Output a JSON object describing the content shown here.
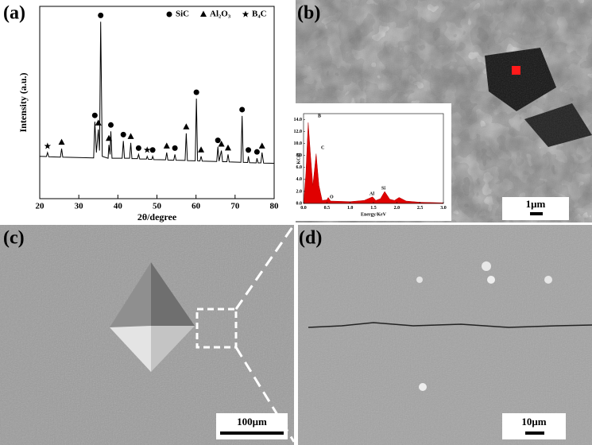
{
  "panels": {
    "a": "(a)",
    "b": "(b)",
    "c": "(c)",
    "d": "(d)"
  },
  "scale_bars": {
    "b": "1μm",
    "c": "100μm",
    "d": "10μm"
  },
  "chart_data": [
    {
      "type": "line",
      "xlabel": "2θ/degree",
      "ylabel": "Intensity (a.u.)",
      "color": "#000000",
      "xlim": [
        20,
        80
      ],
      "xticks": [
        20,
        30,
        40,
        50,
        60,
        70,
        80
      ],
      "ylim": [
        0,
        100
      ],
      "x": [
        20,
        21.7,
        22.0,
        22.3,
        25.3,
        25.6,
        25.9,
        33.8,
        34.1,
        34.5,
        35.0,
        35.3,
        35.6,
        36.0,
        37.5,
        37.7,
        38.0,
        38.2,
        38.5,
        41.1,
        41.4,
        41.7,
        43.0,
        43.3,
        43.6,
        45.0,
        45.3,
        45.6,
        47.3,
        47.5,
        47.8,
        48.7,
        48.9,
        49.2,
        52.2,
        52.5,
        52.8,
        54.3,
        54.6,
        54.9,
        57.2,
        57.5,
        57.8,
        59.8,
        60.1,
        60.4,
        61.0,
        61.3,
        61.6,
        65.3,
        65.6,
        65.9,
        66.5,
        66.8,
        67.9,
        68.2,
        68.5,
        71.5,
        71.8,
        72.1,
        73.2,
        73.4,
        73.7,
        75.4,
        75.6,
        75.9,
        76.6,
        76.9,
        77.3,
        80
      ],
      "values": [
        22,
        21.9,
        24,
        21.8,
        21.6,
        26,
        21.6,
        21.2,
        40,
        24,
        36,
        25,
        92,
        22,
        21,
        28,
        23,
        35,
        21,
        21,
        30,
        21,
        21,
        29,
        20.8,
        20.8,
        23,
        20.6,
        20.6,
        22,
        20.5,
        20.4,
        22,
        20.3,
        20.2,
        24,
        20.1,
        20,
        23,
        20,
        19.9,
        34,
        19.8,
        19.7,
        52,
        19.7,
        19.6,
        22,
        19.5,
        19.3,
        27,
        19.5,
        25,
        19.2,
        19.2,
        23,
        19.1,
        18.9,
        43,
        18.9,
        18.8,
        22,
        18.7,
        18.6,
        21,
        18.6,
        18.6,
        24,
        18.5,
        18.4
      ],
      "phases": [
        {
          "name": "SiC",
          "symbol": "circle",
          "x": [
            34.1,
            35.6,
            38.2,
            41.4,
            45.3,
            48.9,
            54.6,
            60.1,
            65.6,
            71.8,
            73.4,
            75.6
          ]
        },
        {
          "name": "Al₂O₃",
          "symbol": "triangle",
          "x": [
            25.6,
            35.0,
            37.7,
            43.3,
            52.5,
            57.5,
            61.3,
            66.5,
            68.2,
            76.9
          ]
        },
        {
          "name": "B₄C",
          "symbol": "star",
          "x": [
            22.0,
            47.5
          ]
        }
      ]
    },
    {
      "type": "area",
      "xlabel": "Energy/KeV",
      "ylabel": "KCnt",
      "color": "#e00000",
      "xlim": [
        0,
        3
      ],
      "xticks": [
        {
          "value": 0,
          "label": "0.0"
        },
        {
          "value": 0.5,
          "label": "0.5"
        },
        {
          "value": 1,
          "label": "1.0"
        },
        {
          "value": 1.5,
          "label": "1.5"
        },
        {
          "value": 2,
          "label": "2.0"
        },
        {
          "value": 2.5,
          "label": "2.5"
        },
        {
          "value": 3,
          "label": "3.0"
        }
      ],
      "ylim": [
        0,
        15
      ],
      "yticks": [
        {
          "value": 0,
          "label": "0.0"
        },
        {
          "value": 2,
          "label": "2.0"
        },
        {
          "value": 4,
          "label": "4.0"
        },
        {
          "value": 6,
          "label": "6.0"
        },
        {
          "value": 8,
          "label": "8.0"
        },
        {
          "value": 10,
          "label": "10.0"
        },
        {
          "value": 12,
          "label": "12.0"
        },
        {
          "value": 14,
          "label": "14.0"
        }
      ],
      "x": [
        0,
        0.05,
        0.1,
        0.15,
        0.2,
        0.27,
        0.33,
        0.4,
        0.5,
        0.53,
        0.58,
        1.0,
        1.3,
        1.48,
        1.55,
        1.65,
        1.74,
        1.85,
        1.95,
        2.05,
        2.2,
        2.5,
        3.0
      ],
      "values": [
        0,
        5,
        13.5,
        8,
        3,
        8.3,
        3,
        0.5,
        0.6,
        1,
        0.4,
        0.3,
        0.5,
        1.1,
        0.5,
        0.8,
        2,
        0.7,
        0.5,
        1.0,
        0.4,
        0.2,
        0.1
      ],
      "peak_labels": [
        "B",
        "C",
        "O",
        "Al",
        "Si"
      ]
    }
  ]
}
